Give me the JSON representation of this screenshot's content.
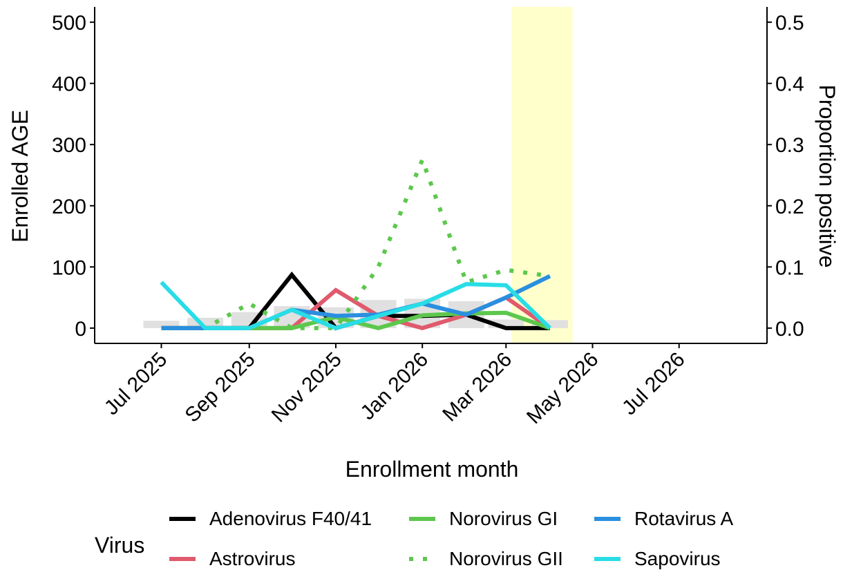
{
  "chart_data": {
    "type": "line",
    "title": "",
    "xlabel": "Enrollment month",
    "ylabel": "Enrolled AGE",
    "y2label": "Proportion positive",
    "xlim": [
      "2025-05-15",
      "2026-09-01"
    ],
    "ylim": [
      -25,
      525
    ],
    "y2lim": [
      -0.025,
      0.525
    ],
    "x_ticks": [
      "2025-07-01",
      "2025-09-01",
      "2025-11-01",
      "2026-01-01",
      "2026-03-01",
      "2026-05-01",
      "2026-07-01"
    ],
    "x_tick_labels": [
      "Jul 2025",
      "Sep 2025",
      "Nov 2025",
      "Jan 2026",
      "Mar 2026",
      "May 2026",
      "Jul 2026"
    ],
    "y_ticks": [
      0,
      100,
      200,
      300,
      400,
      500
    ],
    "y_tick_labels": [
      "0",
      "100",
      "200",
      "300",
      "400",
      "500"
    ],
    "y2_ticks": [
      0,
      0.1,
      0.2,
      0.3,
      0.4,
      0.5
    ],
    "y2_tick_labels": [
      "0.0",
      "0.1",
      "0.2",
      "0.3",
      "0.4",
      "0.5"
    ],
    "highlight": {
      "start": "2026-03-05",
      "end": "2026-04-17",
      "color": "#ffffcc"
    },
    "grid": false,
    "months": [
      "2025-07-01",
      "2025-08-01",
      "2025-09-01",
      "2025-10-01",
      "2025-11-01",
      "2025-12-01",
      "2026-01-01",
      "2026-02-01",
      "2026-03-01",
      "2026-04-01"
    ],
    "bars": {
      "color": "#e0e0e0",
      "axis": "left",
      "values": [
        12,
        17,
        26,
        36,
        34,
        46,
        48,
        44,
        14,
        13
      ]
    },
    "series": [
      {
        "name": "Adenovirus F40/41",
        "color": "#000000",
        "dash": "solid",
        "axis": "right",
        "values": [
          0,
          0,
          0,
          0.087,
          0,
          0.02,
          0.02,
          0.022,
          0,
          0
        ]
      },
      {
        "name": "Astrovirus",
        "color": "#e05a6d",
        "dash": "solid",
        "axis": "right",
        "values": [
          0,
          0,
          0,
          0,
          0.062,
          0.02,
          0,
          0.022,
          0.05,
          0
        ]
      },
      {
        "name": "Norovirus GI",
        "color": "#5dc74d",
        "dash": "solid",
        "axis": "right",
        "values": [
          0,
          0,
          0,
          0,
          0.018,
          0,
          0.021,
          0.024,
          0.025,
          0
        ]
      },
      {
        "name": "Norovirus GII",
        "color": "#5dc74d",
        "dash": "dotted",
        "axis": "right",
        "values": [
          0,
          0,
          0.04,
          0,
          0,
          0.1,
          0.275,
          0.075,
          0.095,
          0.085
        ]
      },
      {
        "name": "Rotavirus A",
        "color": "#2a8fdf",
        "dash": "solid",
        "axis": "right",
        "values": [
          0,
          0,
          0,
          0.03,
          0.02,
          0.022,
          0.04,
          0.022,
          0.05,
          0.085
        ]
      },
      {
        "name": "Sapovirus",
        "color": "#29dde6",
        "dash": "solid",
        "axis": "right",
        "values": [
          0.075,
          0,
          0,
          0.03,
          0,
          0.02,
          0.04,
          0.072,
          0.07,
          0
        ]
      }
    ],
    "legend": {
      "title": "Virus",
      "placement": "bottom"
    }
  }
}
